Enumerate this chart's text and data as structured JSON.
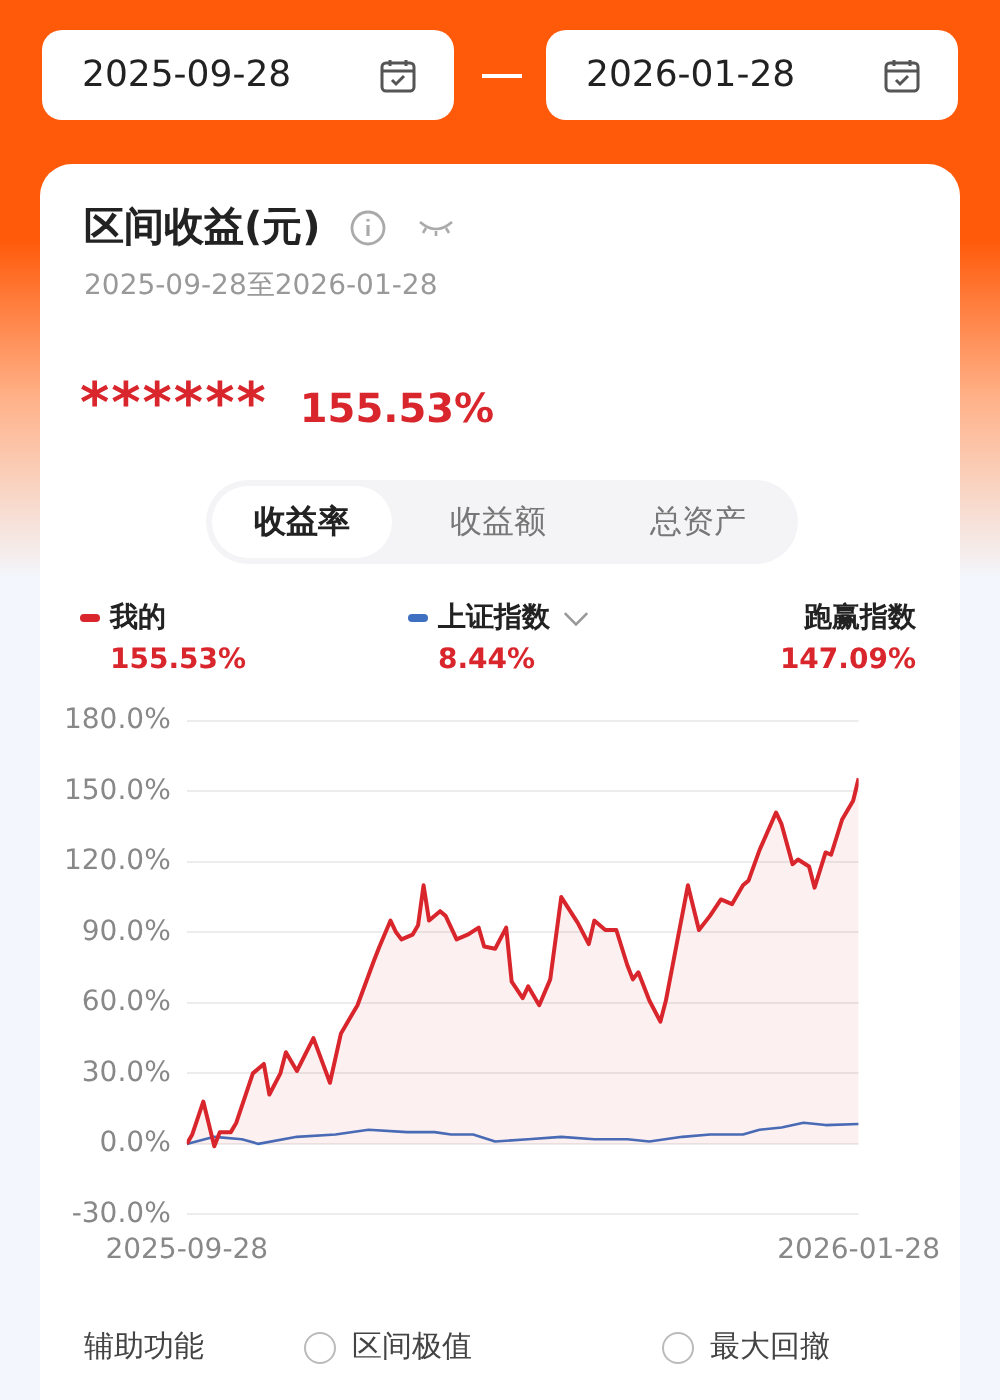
{
  "chart_data": {
    "type": "line",
    "title": "区间收益(元)",
    "subtitle": "2025-09-28至2026-01-28",
    "annotations": [
      "2025-09-28",
      "2026-01-28",
      "******",
      "155.53%",
      "收益率",
      "收益额",
      "总资产",
      "155.53%",
      "8.44%",
      "跑赢指数",
      "147.09%",
      "辅助功能",
      "区间极值",
      "最大回撤"
    ],
    "xlim": [
      "2025-09-28",
      "2026-01-28"
    ],
    "xticks": [
      "2025-09-28",
      "2026-01-28"
    ],
    "ylim": [
      -30,
      180
    ],
    "yticks": [
      {
        "value": -30,
        "label": "-30.0%"
      },
      {
        "value": 0,
        "label": "0.0%"
      },
      {
        "value": 30,
        "label": "30.0%"
      },
      {
        "value": 60,
        "label": "60.0%"
      },
      {
        "value": 90,
        "label": "90.0%"
      },
      {
        "value": 120,
        "label": "120.0%"
      },
      {
        "value": 150,
        "label": "150.0%"
      },
      {
        "value": 180,
        "label": "180.0%"
      }
    ],
    "grid": "y",
    "legend": "top",
    "series": [
      {
        "name": "我的",
        "type": "area",
        "color": "#d9262c",
        "x": [
          "2025-09-28",
          "2025-09-29",
          "2025-10-01",
          "2025-10-03",
          "2025-10-04",
          "2025-10-06",
          "2025-10-07",
          "2025-10-10",
          "2025-10-12",
          "2025-10-13",
          "2025-10-15",
          "2025-10-16",
          "2025-10-18",
          "2025-10-21",
          "2025-10-24",
          "2025-10-26",
          "2025-10-29",
          "2025-11-01",
          "2025-11-02",
          "2025-11-04",
          "2025-11-05",
          "2025-11-06",
          "2025-11-08",
          "2025-11-09",
          "2025-11-10",
          "2025-11-11",
          "2025-11-13",
          "2025-11-14",
          "2025-11-16",
          "2025-11-18",
          "2025-11-20",
          "2025-11-21",
          "2025-11-23",
          "2025-11-25",
          "2025-11-26",
          "2025-11-28",
          "2025-11-29",
          "2025-12-01",
          "2025-12-03",
          "2025-12-05",
          "2025-12-08",
          "2025-12-10",
          "2025-12-11",
          "2025-12-13",
          "2025-12-15",
          "2025-12-17",
          "2025-12-18",
          "2025-12-19",
          "2025-12-21",
          "2025-12-23",
          "2025-12-24",
          "2025-12-28",
          "2025-12-30",
          "2026-01-01",
          "2026-01-03",
          "2026-01-05",
          "2026-01-07",
          "2026-01-08",
          "2026-01-10",
          "2026-01-13",
          "2026-01-14",
          "2026-01-16",
          "2026-01-17",
          "2026-01-19",
          "2026-01-20",
          "2026-01-22",
          "2026-01-23",
          "2026-01-25",
          "2026-01-27",
          "2026-01-28"
        ],
        "values": [
          0,
          4,
          18,
          -1,
          5,
          5,
          9,
          30,
          34,
          21,
          30,
          39,
          31,
          45,
          26,
          47,
          59,
          78,
          84,
          95,
          90,
          87,
          89,
          93,
          110,
          95,
          99,
          97,
          87,
          89,
          92,
          84,
          83,
          92,
          69,
          62,
          67,
          59,
          70,
          105,
          94,
          85,
          95,
          91,
          91,
          76,
          70,
          73,
          61,
          52,
          61,
          110,
          91,
          97,
          104,
          102,
          110,
          112,
          125,
          141,
          136,
          119,
          121,
          118,
          109,
          124,
          123,
          138,
          146,
          155.53
        ]
      },
      {
        "name": "上证指数",
        "type": "line",
        "color": "#3f6fc0",
        "x": [
          "2025-09-28",
          "2025-10-03",
          "2025-10-08",
          "2025-10-11",
          "2025-10-18",
          "2025-10-25",
          "2025-10-31",
          "2025-11-07",
          "2025-11-12",
          "2025-11-15",
          "2025-11-19",
          "2025-11-23",
          "2025-11-29",
          "2025-12-05",
          "2025-12-11",
          "2025-12-17",
          "2025-12-21",
          "2025-12-27",
          "2026-01-01",
          "2026-01-07",
          "2026-01-10",
          "2026-01-14",
          "2026-01-18",
          "2026-01-22",
          "2026-01-28"
        ],
        "values": [
          0,
          3,
          2,
          0,
          3,
          4,
          6,
          5,
          5,
          4,
          4,
          1,
          2,
          3,
          2,
          2,
          1,
          3,
          4,
          4,
          6,
          7,
          9,
          8,
          8.44
        ]
      }
    ]
  }
}
